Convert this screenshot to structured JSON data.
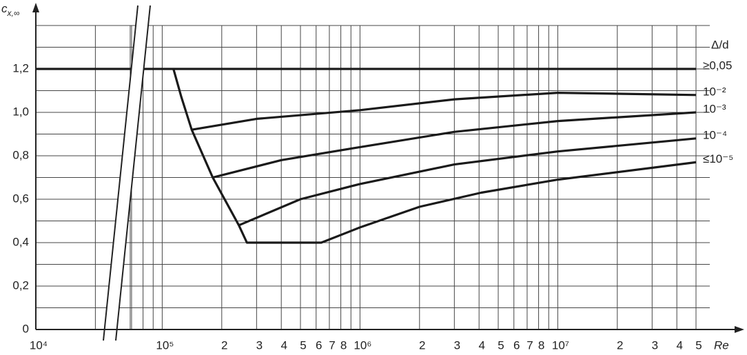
{
  "chart_data": {
    "type": "line",
    "ylabel": "c",
    "ylabel_subscript": "x,∞",
    "xlabel": "Re",
    "legend_title": "Δ/d",
    "log_x": true,
    "grid": true,
    "xlim": [
      10000,
      50000000
    ],
    "x_break": [
      30000,
      70000
    ],
    "ylim": [
      0,
      1.4
    ],
    "yticks": [
      0,
      {
        "value": 0.2,
        "label": "0,2"
      },
      {
        "value": 0.4,
        "label": "0,4"
      },
      {
        "value": 0.6,
        "label": "0,6"
      },
      {
        "value": 0.8,
        "label": "0,8"
      },
      {
        "value": 1.0,
        "label": "1,0"
      },
      {
        "value": 1.2,
        "label": "1,2"
      }
    ],
    "y_minor_ticks": [
      0.1,
      0.3,
      0.5,
      0.7,
      0.9,
      1.1,
      1.3,
      1.4
    ],
    "xticks": [
      {
        "value": 10000,
        "label": "10⁴"
      },
      {
        "value": 100000,
        "label": "10⁵"
      },
      {
        "value": 200000,
        "label": "2"
      },
      {
        "value": 300000,
        "label": "3"
      },
      {
        "value": 400000,
        "label": "4"
      },
      {
        "value": 500000,
        "label": "5"
      },
      {
        "value": 600000,
        "label": "6"
      },
      {
        "value": 700000,
        "label": "7"
      },
      {
        "value": 800000,
        "label": "8"
      },
      {
        "value": 1000000,
        "label": "10⁶"
      },
      {
        "value": 2000000,
        "label": "2"
      },
      {
        "value": 3000000,
        "label": "3"
      },
      {
        "value": 4000000,
        "label": "4"
      },
      {
        "value": 5000000,
        "label": "5"
      },
      {
        "value": 6000000,
        "label": "6"
      },
      {
        "value": 7000000,
        "label": "7"
      },
      {
        "value": 8000000,
        "label": "8"
      },
      {
        "value": 10000000,
        "label": "10⁷"
      },
      {
        "value": 20000000,
        "label": "2"
      },
      {
        "value": 30000000,
        "label": "3"
      },
      {
        "value": 40000000,
        "label": "4"
      },
      {
        "value": 50000000,
        "label": "5"
      }
    ],
    "x_minor_ticks": [
      20000,
      30000,
      70000,
      80000,
      90000,
      900000,
      9000000
    ],
    "series": [
      {
        "name": "≥0,05",
        "color": "#1a1a1a",
        "x": [
          10000,
          50000000
        ],
        "values": [
          1.2,
          1.2
        ]
      },
      {
        "name": "10⁻²",
        "color": "#1a1a1a",
        "x": [
          141000,
          300000,
          1000000,
          3000000,
          10000000,
          50000000
        ],
        "values": [
          0.92,
          0.97,
          1.01,
          1.06,
          1.09,
          1.08
        ]
      },
      {
        "name": "10⁻³",
        "color": "#1a1a1a",
        "x": [
          180000,
          400000,
          1000000,
          3000000,
          10000000,
          50000000
        ],
        "values": [
          0.7,
          0.78,
          0.84,
          0.91,
          0.96,
          1.0
        ]
      },
      {
        "name": "10⁻⁴",
        "color": "#1a1a1a",
        "x": [
          244000,
          500000,
          1000000,
          3000000,
          10000000,
          50000000
        ],
        "values": [
          0.48,
          0.6,
          0.67,
          0.76,
          0.82,
          0.88
        ]
      },
      {
        "name": "≤10⁻⁵",
        "color": "#1a1a1a",
        "x": [
          114000,
          125000,
          141000,
          180000,
          244000,
          268000,
          637000,
          1000000,
          2000000,
          4100000,
          10000000,
          50000000
        ],
        "values": [
          1.2,
          1.07,
          0.92,
          0.7,
          0.48,
          0.4,
          0.4,
          0.47,
          0.565,
          0.63,
          0.69,
          0.77
        ]
      }
    ]
  }
}
